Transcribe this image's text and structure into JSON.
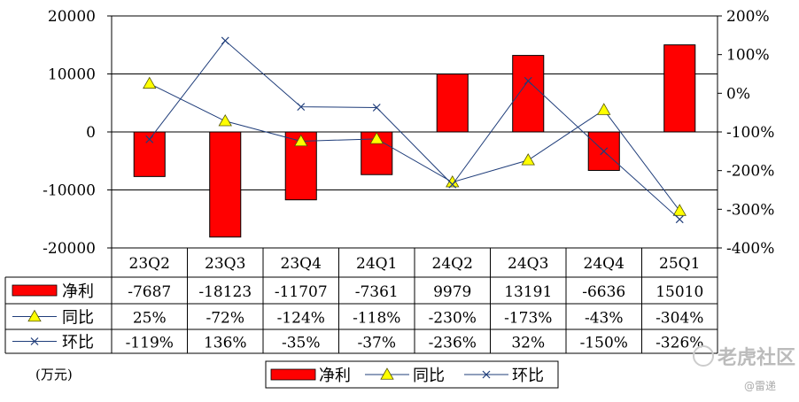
{
  "chart_data": {
    "type": "bar",
    "categories": [
      "23Q2",
      "23Q3",
      "23Q4",
      "24Q1",
      "24Q2",
      "24Q3",
      "24Q4",
      "25Q1"
    ],
    "left_axis": {
      "ticks": [
        "20000",
        "10000",
        "0",
        "-10000",
        "-20000"
      ],
      "ylim": [
        -20000,
        20000
      ]
    },
    "right_axis": {
      "ticks": [
        "200%",
        "100%",
        "0%",
        "-100%",
        "-200%",
        "-300%",
        "-400%"
      ],
      "ylim": [
        -400,
        200
      ]
    },
    "series": [
      {
        "name": "净利",
        "kind": "bar",
        "axis": "left",
        "color": "#ff0000",
        "values": [
          -7687,
          -18123,
          -11707,
          -7361,
          9979,
          13191,
          -6636,
          15010
        ],
        "labels": [
          "-7687",
          "-18123",
          "-11707",
          "-7361",
          "9979",
          "13191",
          "-6636",
          "15010"
        ]
      },
      {
        "name": "同比",
        "kind": "line",
        "axis": "right",
        "marker": "triangle",
        "color": "#1f3d7a",
        "values": [
          25,
          -72,
          -124,
          -118,
          -230,
          -173,
          -43,
          -304
        ],
        "labels": [
          "25%",
          "-72%",
          "-124%",
          "-118%",
          "-230%",
          "-173%",
          "-43%",
          "-304%"
        ]
      },
      {
        "name": "环比",
        "kind": "line",
        "axis": "right",
        "marker": "x",
        "color": "#1f3d7a",
        "values": [
          -119,
          136,
          -35,
          -37,
          -236,
          32,
          -150,
          -326
        ],
        "labels": [
          "-119%",
          "136%",
          "-35%",
          "-37%",
          "-236%",
          "32%",
          "-150%",
          "-326%"
        ]
      }
    ],
    "unit_label": "(万元)",
    "legend": {
      "position": "bottom",
      "items": [
        "净利",
        "同比",
        "环比"
      ]
    },
    "grid": true
  },
  "watermark": {
    "brand": "老虎社区",
    "author": "@雷递"
  }
}
